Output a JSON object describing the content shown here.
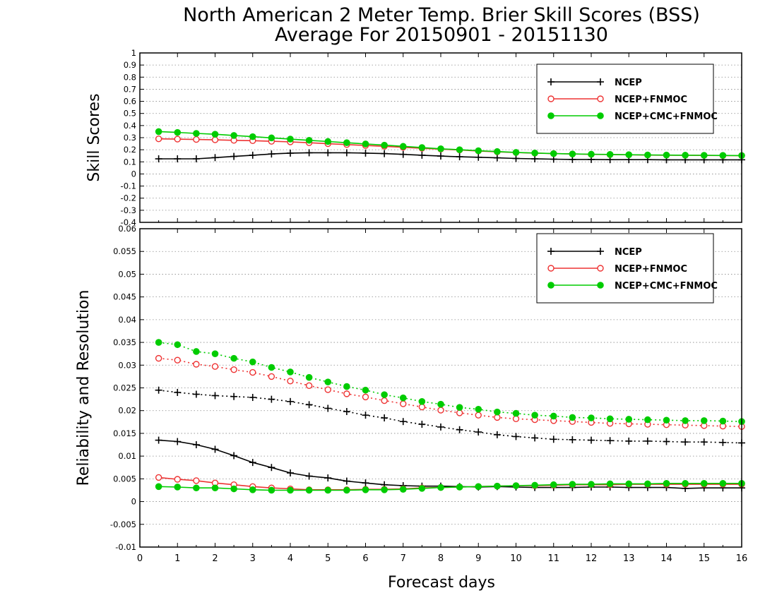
{
  "title_line1": "North American 2 Meter Temp. Brier Skill Scores (BSS)",
  "title_line2": "Average For 20150901 - 20151130",
  "xlabel": "Forecast days",
  "colors": {
    "ncep": "#000000",
    "fnmoc": "#ee3333",
    "cmc": "#00cc00"
  },
  "chart_data": [
    {
      "type": "line",
      "ylabel": "Skill Scores",
      "xlim": [
        0,
        16
      ],
      "ylim": [
        -0.4,
        1
      ],
      "x_ticks": [
        0,
        1,
        2,
        3,
        4,
        5,
        6,
        7,
        8,
        9,
        10,
        11,
        12,
        13,
        14,
        15,
        16
      ],
      "y_ticks": [
        "-0.4",
        "-0.3",
        "-0.2",
        "-0.1",
        "0",
        "0.1",
        "0.2",
        "0.3",
        "0.4",
        "0.5",
        "0.6",
        "0.7",
        "0.8",
        "0.9",
        "1"
      ],
      "grid": true,
      "legend_position": "top-right",
      "x": [
        0.5,
        1,
        1.5,
        2,
        2.5,
        3,
        3.5,
        4,
        4.5,
        5,
        5.5,
        6,
        6.5,
        7,
        7.5,
        8,
        8.5,
        9,
        9.5,
        10,
        10.5,
        11,
        11.5,
        12,
        12.5,
        13,
        13.5,
        14,
        14.5,
        15,
        15.5,
        16
      ],
      "series": [
        {
          "name": "NCEP",
          "marker": "plus",
          "color_key": "ncep",
          "line": "solid",
          "values": [
            0.125,
            0.125,
            0.125,
            0.135,
            0.145,
            0.155,
            0.165,
            0.172,
            0.175,
            0.175,
            0.175,
            0.172,
            0.168,
            0.162,
            0.155,
            0.148,
            0.142,
            0.138,
            0.133,
            0.128,
            0.125,
            0.122,
            0.12,
            0.12,
            0.118,
            0.118,
            0.118,
            0.117,
            0.117,
            0.117,
            0.117,
            0.117
          ]
        },
        {
          "name": "NCEP+FNMOC",
          "marker": "circle-open",
          "color_key": "fnmoc",
          "line": "solid",
          "values": [
            0.29,
            0.288,
            0.285,
            0.282,
            0.278,
            0.275,
            0.27,
            0.265,
            0.258,
            0.25,
            0.243,
            0.235,
            0.228,
            0.22,
            0.212,
            0.205,
            0.198,
            0.19,
            0.183,
            0.177,
            0.172,
            0.168,
            0.165,
            0.162,
            0.16,
            0.158,
            0.156,
            0.155,
            0.154,
            0.153,
            0.152,
            0.152
          ]
        },
        {
          "name": "NCEP+CMC+FNMOC",
          "marker": "circle-filled",
          "color_key": "cmc",
          "line": "solid",
          "values": [
            0.35,
            0.343,
            0.335,
            0.328,
            0.318,
            0.308,
            0.298,
            0.288,
            0.278,
            0.268,
            0.258,
            0.248,
            0.238,
            0.228,
            0.218,
            0.208,
            0.2,
            0.192,
            0.185,
            0.178,
            0.173,
            0.168,
            0.165,
            0.163,
            0.161,
            0.159,
            0.157,
            0.156,
            0.155,
            0.154,
            0.153,
            0.152
          ]
        }
      ]
    },
    {
      "type": "line",
      "ylabel": "Reliability and Resolution",
      "xlim": [
        0,
        16
      ],
      "ylim": [
        -0.01,
        0.06
      ],
      "x_ticks": [
        0,
        1,
        2,
        3,
        4,
        5,
        6,
        7,
        8,
        9,
        10,
        11,
        12,
        13,
        14,
        15,
        16
      ],
      "y_ticks": [
        "-0.01",
        "-0.005",
        "0",
        "0.005",
        "0.01",
        "0.015",
        "0.02",
        "0.025",
        "0.03",
        "0.035",
        "0.04",
        "0.045",
        "0.05",
        "0.055",
        "0.06"
      ],
      "grid": true,
      "legend_position": "top-right",
      "x": [
        0.5,
        1,
        1.5,
        2,
        2.5,
        3,
        3.5,
        4,
        4.5,
        5,
        5.5,
        6,
        6.5,
        7,
        7.5,
        8,
        8.5,
        9,
        9.5,
        10,
        10.5,
        11,
        11.5,
        12,
        12.5,
        13,
        13.5,
        14,
        14.5,
        15,
        15.5,
        16
      ],
      "series": [
        {
          "name": "NCEP",
          "marker": "plus",
          "color_key": "ncep",
          "line": "dotted",
          "values": [
            0.0245,
            0.024,
            0.0236,
            0.0233,
            0.0231,
            0.0229,
            0.0225,
            0.022,
            0.0213,
            0.0205,
            0.0198,
            0.019,
            0.0184,
            0.0176,
            0.017,
            0.0164,
            0.0158,
            0.0153,
            0.0147,
            0.0143,
            0.014,
            0.0137,
            0.0136,
            0.0135,
            0.0134,
            0.0133,
            0.0133,
            0.0132,
            0.0131,
            0.0131,
            0.013,
            0.0129
          ]
        },
        {
          "name": "NCEP+FNMOC",
          "marker": "circle-open",
          "color_key": "fnmoc",
          "line": "dotted",
          "values": [
            0.0315,
            0.0311,
            0.0302,
            0.0297,
            0.029,
            0.0284,
            0.0275,
            0.0265,
            0.0255,
            0.0246,
            0.0237,
            0.023,
            0.0222,
            0.0215,
            0.0208,
            0.0201,
            0.0195,
            0.019,
            0.0185,
            0.0182,
            0.018,
            0.0178,
            0.0176,
            0.0174,
            0.0172,
            0.0171,
            0.017,
            0.0169,
            0.0168,
            0.0167,
            0.0166,
            0.0165
          ]
        },
        {
          "name": "NCEP+CMC+FNMOC",
          "marker": "circle-filled",
          "color_key": "cmc",
          "line": "dotted",
          "values": [
            0.035,
            0.0345,
            0.033,
            0.0325,
            0.0315,
            0.0307,
            0.0295,
            0.0285,
            0.0273,
            0.0263,
            0.0253,
            0.0245,
            0.0235,
            0.0228,
            0.022,
            0.0214,
            0.0207,
            0.0203,
            0.0197,
            0.0194,
            0.019,
            0.0188,
            0.0185,
            0.0184,
            0.0182,
            0.0181,
            0.018,
            0.0179,
            0.0178,
            0.0178,
            0.0177,
            0.0176
          ]
        },
        {
          "name": "NCEP",
          "marker": "plus",
          "color_key": "ncep",
          "line": "solid",
          "legend": false,
          "values": [
            0.0135,
            0.0132,
            0.0125,
            0.0115,
            0.0101,
            0.0086,
            0.0075,
            0.0063,
            0.0056,
            0.0052,
            0.0045,
            0.0041,
            0.0037,
            0.0035,
            0.0034,
            0.0034,
            0.0033,
            0.0032,
            0.0033,
            0.0032,
            0.0031,
            0.0031,
            0.0031,
            0.0032,
            0.0032,
            0.0031,
            0.0031,
            0.0031,
            0.0029,
            0.003,
            0.003,
            0.003
          ]
        },
        {
          "name": "NCEP+FNMOC",
          "marker": "circle-open",
          "color_key": "fnmoc",
          "line": "solid",
          "legend": false,
          "values": [
            0.0053,
            0.0049,
            0.0046,
            0.0041,
            0.0037,
            0.0033,
            0.003,
            0.0028,
            0.0026,
            0.0026,
            0.0026,
            0.0027,
            0.0027,
            0.0028,
            0.003,
            0.0031,
            0.0032,
            0.0033,
            0.0034,
            0.0035,
            0.0035,
            0.0036,
            0.0037,
            0.0037,
            0.0037,
            0.0038,
            0.0038,
            0.0038,
            0.0038,
            0.0038,
            0.0038,
            0.0038
          ]
        },
        {
          "name": "NCEP+CMC+FNMOC",
          "marker": "circle-filled",
          "color_key": "cmc",
          "line": "solid",
          "legend": false,
          "values": [
            0.0033,
            0.0032,
            0.003,
            0.003,
            0.0028,
            0.0026,
            0.0025,
            0.0025,
            0.0025,
            0.0025,
            0.0025,
            0.0026,
            0.0026,
            0.0027,
            0.0029,
            0.0031,
            0.0032,
            0.0033,
            0.0034,
            0.0035,
            0.0036,
            0.0037,
            0.0038,
            0.0038,
            0.0039,
            0.0039,
            0.0039,
            0.004,
            0.004,
            0.004,
            0.004,
            0.004
          ]
        }
      ]
    }
  ]
}
